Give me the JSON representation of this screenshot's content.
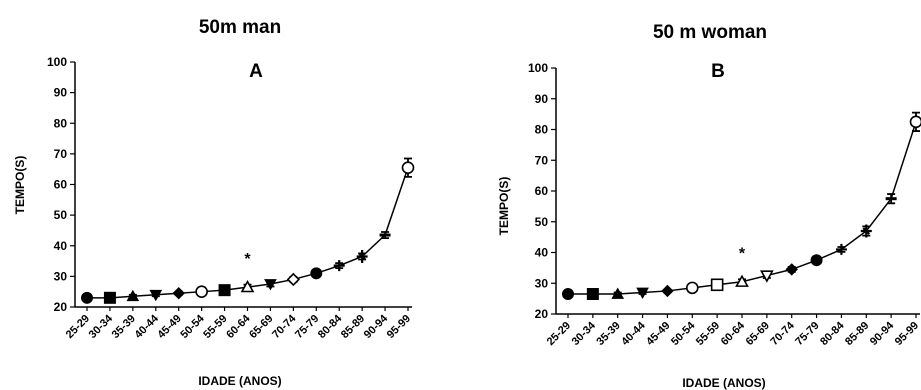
{
  "chart_data": [
    {
      "type": "line",
      "title": "50m man",
      "panel_label": "A",
      "xlabel": "IDADE (ANOS)",
      "ylabel": "TEMPO(S)",
      "ylim": [
        20,
        100
      ],
      "yticks": [
        20,
        30,
        40,
        50,
        60,
        70,
        80,
        90,
        100
      ],
      "grid": false,
      "categories": [
        "25-29",
        "30-34",
        "35-39",
        "40-44",
        "45-49",
        "50-54",
        "55-59",
        "60-64",
        "65-69",
        "70-74",
        "75-79",
        "80-84",
        "85-89",
        "90-94",
        "95-99"
      ],
      "values": [
        23.0,
        23.0,
        23.5,
        24.0,
        24.5,
        25.0,
        25.5,
        26.5,
        27.5,
        29.0,
        31.0,
        33.5,
        36.5,
        43.5,
        65.5
      ],
      "errors": [
        0.5,
        0.5,
        0.5,
        0.5,
        0.5,
        0.5,
        0.5,
        0.8,
        0.8,
        0.8,
        0.8,
        0.8,
        1.0,
        1.0,
        3.0
      ],
      "markers": [
        "circle",
        "square",
        "triangle",
        "triangle-down",
        "diamond",
        "circle-open",
        "square",
        "triangle-open",
        "triangle-down",
        "diamond-open",
        "circle",
        "plus",
        "cross",
        "dash",
        "circle-open"
      ],
      "annotations": [
        {
          "text": "*",
          "category": "60-64",
          "y": 36
        }
      ]
    },
    {
      "type": "line",
      "title": "50 m woman",
      "panel_label": "B",
      "xlabel": "IDADE (ANOS)",
      "ylabel": "TEMPO(S)",
      "ylim": [
        20,
        100
      ],
      "yticks": [
        20,
        30,
        40,
        50,
        60,
        70,
        80,
        90,
        100
      ],
      "grid": false,
      "categories": [
        "25-29",
        "30-34",
        "35-39",
        "40-44",
        "45-49",
        "50-54",
        "55-59",
        "60-64",
        "65-69",
        "70-74",
        "75-79",
        "80-84",
        "85-89",
        "90-94",
        "95-99"
      ],
      "values": [
        26.5,
        26.5,
        26.5,
        27.0,
        27.5,
        28.5,
        29.5,
        30.5,
        32.5,
        34.5,
        37.5,
        41.0,
        47.0,
        57.5,
        82.5
      ],
      "errors": [
        0.5,
        0.5,
        0.5,
        0.5,
        0.5,
        0.5,
        0.8,
        0.8,
        0.8,
        0.8,
        0.8,
        0.8,
        1.5,
        1.5,
        3.0
      ],
      "markers": [
        "circle",
        "square",
        "triangle",
        "triangle-down",
        "diamond",
        "circle-open",
        "square-open",
        "triangle-open",
        "triangle-down-open",
        "diamond",
        "circle",
        "plus",
        "cross",
        "dash",
        "circle-open"
      ],
      "annotations": [
        {
          "text": "*",
          "category": "60-64",
          "y": 40
        }
      ]
    }
  ]
}
